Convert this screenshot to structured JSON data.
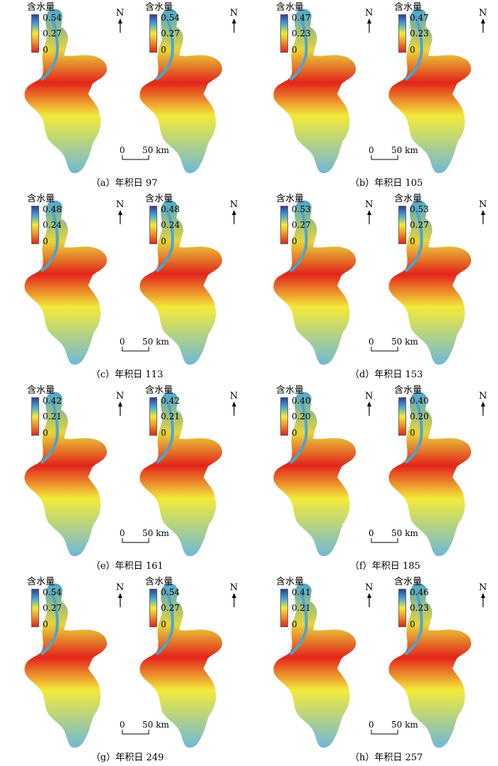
{
  "legend_title": "含水量",
  "north_label": "N",
  "scale": {
    "zero": "0",
    "dist": "50 km"
  },
  "colors": {
    "ramp": [
      "#2c3f9e",
      "#4aa5cf",
      "#f3ea3a",
      "#f08c22",
      "#e3241b"
    ],
    "map_fill_left": [
      "#e8d43a",
      "#e3241b",
      "#6fb8d6"
    ],
    "map_fill_right": [
      "#e8d43a",
      "#e3241b",
      "#6fb8d6"
    ]
  },
  "panels": [
    {
      "caption": "（a）年积日 97",
      "left": {
        "max": "0.54",
        "mid": "0.27",
        "min": "0"
      },
      "right": {
        "max": "0.54",
        "mid": "0.27",
        "min": "0"
      }
    },
    {
      "caption": "（b）年积日 105",
      "left": {
        "max": "0.47",
        "mid": "0.23",
        "min": "0"
      },
      "right": {
        "max": "0.47",
        "mid": "0.23",
        "min": "0"
      }
    },
    {
      "caption": "（c）年积日 113",
      "left": {
        "max": "0.48",
        "mid": "0.24",
        "min": "0"
      },
      "right": {
        "max": "0.48",
        "mid": "0.24",
        "min": "0"
      }
    },
    {
      "caption": "（d）年积日 153",
      "left": {
        "max": "0.53",
        "mid": "0.27",
        "min": "0"
      },
      "right": {
        "max": "0.53",
        "mid": "0.27",
        "min": "0"
      }
    },
    {
      "caption": "（e）年积日 161",
      "left": {
        "max": "0.42",
        "mid": "0.21",
        "min": "0"
      },
      "right": {
        "max": "0.42",
        "mid": "0.21",
        "min": "0"
      }
    },
    {
      "caption": "（f）年积日 185",
      "left": {
        "max": "0.40",
        "mid": "0.20",
        "min": "0"
      },
      "right": {
        "max": "0.40",
        "mid": "0.20",
        "min": "0"
      }
    },
    {
      "caption": "（g）年积日 249",
      "left": {
        "max": "0.54",
        "mid": "0.27",
        "min": "0"
      },
      "right": {
        "max": "0.54",
        "mid": "0.27",
        "min": "0"
      }
    },
    {
      "caption": "（h）年积日 257",
      "left": {
        "max": "0.41",
        "mid": "0.21",
        "min": "0"
      },
      "right": {
        "max": "0.46",
        "mid": "0.23",
        "min": "0"
      }
    }
  ]
}
